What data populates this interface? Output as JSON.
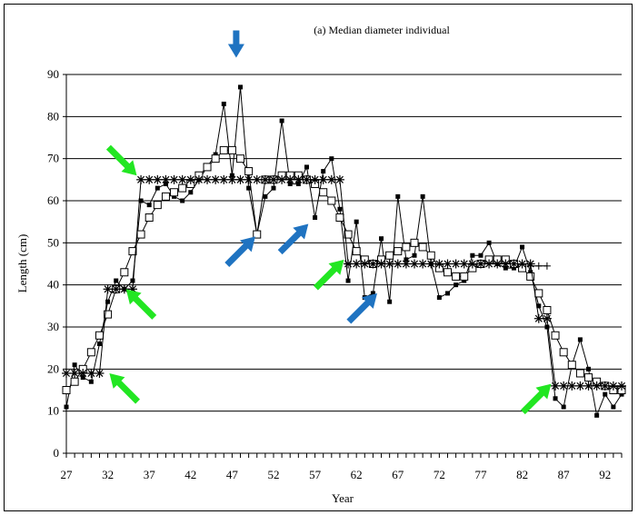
{
  "chart_data": {
    "type": "line",
    "title": "(a) Median diameter individual",
    "xlabel": "Year",
    "ylabel": "Length (cm)",
    "xlim": [
      27,
      94
    ],
    "ylim": [
      0,
      90
    ],
    "x_ticks": [
      "27",
      "32",
      "37",
      "42",
      "47",
      "52",
      "57",
      "62",
      "67",
      "72",
      "77",
      "82",
      "87",
      "92"
    ],
    "y_ticks": [
      "0",
      "10",
      "20",
      "30",
      "40",
      "50",
      "60",
      "70",
      "80",
      "90"
    ],
    "grid": "horizontal",
    "series": [
      {
        "marker": "filled-square",
        "x": [
          27,
          28,
          29,
          30,
          31,
          32,
          33,
          34,
          35,
          36,
          37,
          38,
          39,
          40,
          41,
          42,
          43,
          44,
          45,
          46,
          47,
          48,
          49,
          50,
          51,
          52,
          53,
          54,
          55,
          56,
          57,
          58,
          59,
          60,
          61,
          62,
          63,
          64,
          65,
          66,
          67,
          68,
          69,
          70,
          71,
          72,
          73,
          74,
          75,
          76,
          77,
          78,
          79,
          80,
          81,
          82,
          83,
          84,
          85,
          86,
          87,
          88,
          89,
          90,
          91,
          92,
          93,
          94
        ],
        "y": [
          11,
          21,
          18,
          17,
          26,
          36,
          41,
          39,
          41,
          60,
          59,
          63,
          64,
          61,
          60,
          62,
          65,
          68,
          71,
          83,
          66,
          87,
          63,
          52,
          61,
          63,
          79,
          64,
          64,
          68,
          56,
          67,
          70,
          58,
          41,
          55,
          37,
          38,
          51,
          36,
          61,
          46,
          47,
          61,
          45,
          37,
          38,
          40,
          41,
          47,
          47,
          50,
          45,
          44,
          44,
          49,
          43,
          35,
          30,
          13,
          11,
          21,
          27,
          20,
          9,
          14,
          11,
          14
        ]
      },
      {
        "marker": "open-square",
        "x": [
          27,
          28,
          29,
          30,
          31,
          32,
          33,
          34,
          35,
          36,
          37,
          38,
          39,
          40,
          41,
          42,
          43,
          44,
          45,
          46,
          47,
          48,
          49,
          50,
          51,
          52,
          53,
          54,
          55,
          56,
          57,
          58,
          59,
          60,
          61,
          62,
          63,
          64,
          65,
          66,
          67,
          68,
          69,
          70,
          71,
          72,
          73,
          74,
          75,
          76,
          77,
          78,
          79,
          80,
          81,
          82,
          83,
          84,
          85,
          86,
          87,
          88,
          89,
          90,
          91,
          92,
          93,
          94
        ],
        "y": [
          15,
          17,
          20,
          24,
          28,
          33,
          39,
          43,
          48,
          52,
          56,
          59,
          61,
          62,
          63,
          64,
          66,
          68,
          70,
          72,
          72,
          70,
          67,
          52,
          65,
          65,
          66,
          66,
          66,
          65,
          64,
          62,
          60,
          56,
          52,
          48,
          46,
          45,
          46,
          47,
          48,
          49,
          50,
          49,
          47,
          44,
          43,
          42,
          42,
          44,
          45,
          46,
          46,
          46,
          45,
          44,
          42,
          38,
          34,
          28,
          24,
          21,
          19,
          18,
          17,
          16,
          15,
          15
        ]
      },
      {
        "marker": "asterisk",
        "x": [
          27,
          28,
          29,
          30,
          31,
          32,
          33,
          34,
          35,
          36,
          37,
          38,
          39,
          40,
          41,
          42,
          43,
          44,
          45,
          46,
          47,
          48,
          49,
          50,
          51,
          52,
          53,
          54,
          55,
          56,
          57,
          58,
          59,
          60,
          61,
          62,
          63,
          64,
          65,
          66,
          67,
          68,
          69,
          70,
          71,
          72,
          73,
          74,
          75,
          76,
          77,
          78,
          79,
          80,
          81,
          82,
          83,
          84,
          85,
          86,
          87,
          88,
          89,
          90,
          91,
          92,
          93,
          94
        ],
        "y": [
          19,
          19,
          19,
          19,
          19,
          39,
          39,
          39,
          39,
          65,
          65,
          65,
          65,
          65,
          65,
          65,
          65,
          65,
          65,
          65,
          65,
          65,
          65,
          65,
          65,
          65,
          65,
          65,
          65,
          65,
          65,
          65,
          65,
          65,
          45,
          45,
          45,
          45,
          45,
          45,
          45,
          45,
          45,
          45,
          45,
          45,
          45,
          45,
          45,
          45,
          45,
          45,
          45,
          45,
          45,
          45,
          45,
          32,
          32,
          16,
          16,
          16,
          16,
          16,
          16,
          16,
          16,
          16
        ]
      },
      {
        "marker": "plus",
        "x": [
          83,
          84,
          85
        ],
        "y": [
          44.5,
          44.5,
          44.5
        ]
      }
    ],
    "arrows": {
      "green": [
        {
          "x": 35.5,
          "y": 66,
          "dir": "down-right"
        },
        {
          "x": 34.2,
          "y": 39,
          "dir": "up-left"
        },
        {
          "x": 32.2,
          "y": 19,
          "dir": "up-left"
        },
        {
          "x": 60.5,
          "y": 46,
          "dir": "up-right"
        },
        {
          "x": 85.5,
          "y": 16.5,
          "dir": "up-right"
        }
      ],
      "blue": [
        {
          "x": 47.5,
          "y": 94,
          "dir": "down"
        },
        {
          "x": 49.8,
          "y": 51.5,
          "dir": "up-right"
        },
        {
          "x": 56.2,
          "y": 54.5,
          "dir": "up-right"
        },
        {
          "x": 64.5,
          "y": 38,
          "dir": "up-right"
        }
      ]
    },
    "colors": {
      "green": "#22e622",
      "blue": "#1f73c1",
      "ink": "#000000"
    }
  }
}
